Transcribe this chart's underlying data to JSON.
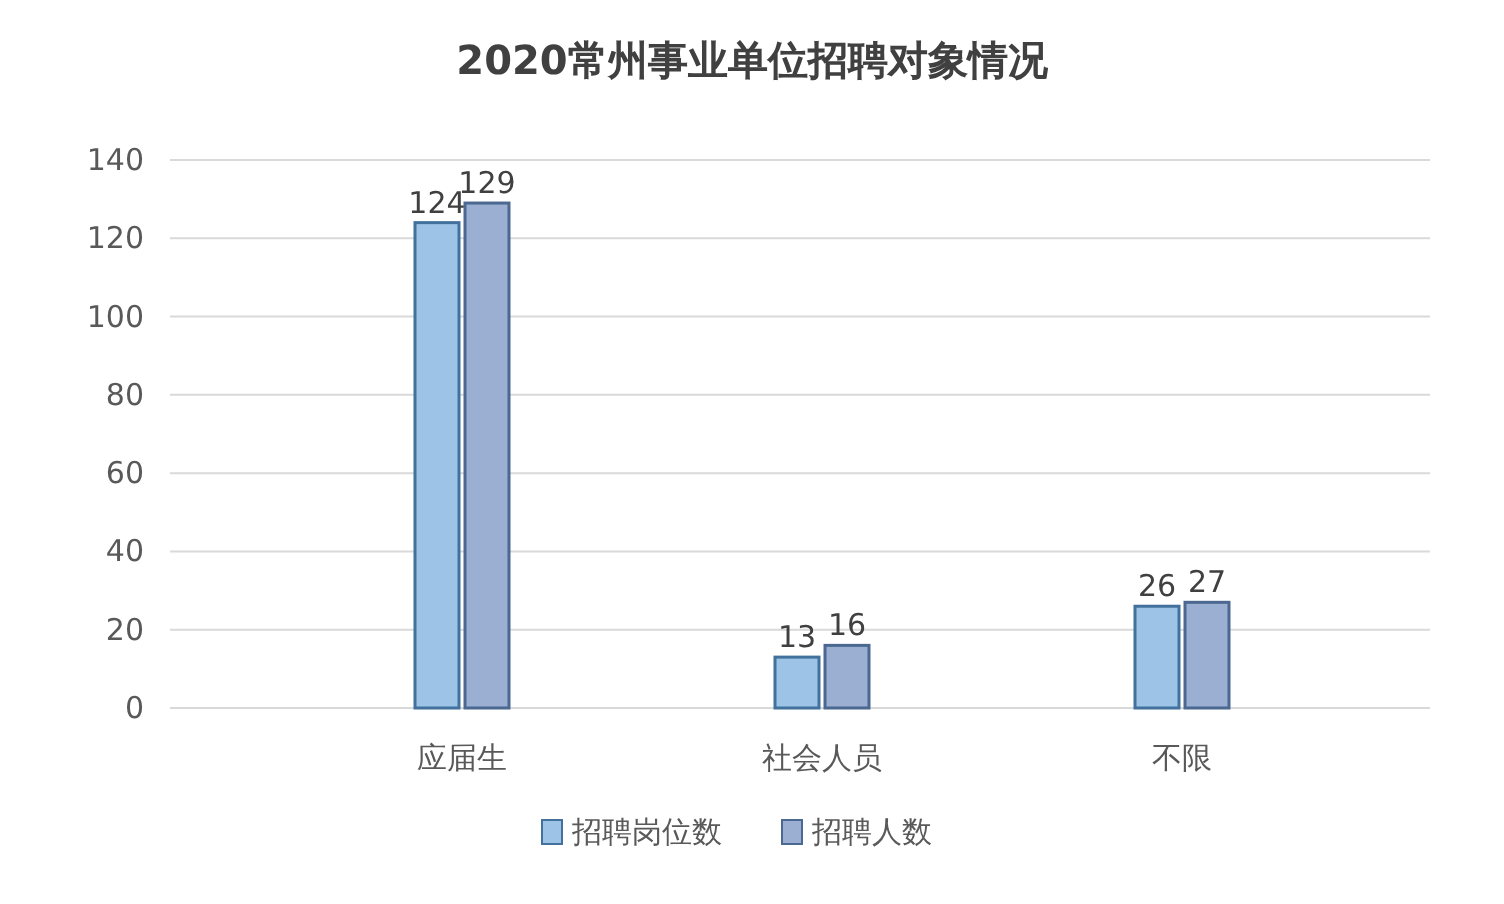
{
  "chart_data": {
    "type": "bar",
    "title": "2020常州事业单位招聘对象情况",
    "categories": [
      "应届生",
      "社会人员",
      "不限"
    ],
    "series": [
      {
        "name": "招聘岗位数",
        "color": "#9dc3e6",
        "values": [
          124,
          13,
          26
        ]
      },
      {
        "name": "招聘人数",
        "color": "#9aafd2",
        "values": [
          129,
          16,
          27
        ]
      }
    ],
    "ylim": [
      0,
      140
    ],
    "yticks": [
      0,
      20,
      40,
      60,
      80,
      100,
      120,
      140
    ],
    "grid": "y",
    "legend": "bottom",
    "data_labels": true
  }
}
